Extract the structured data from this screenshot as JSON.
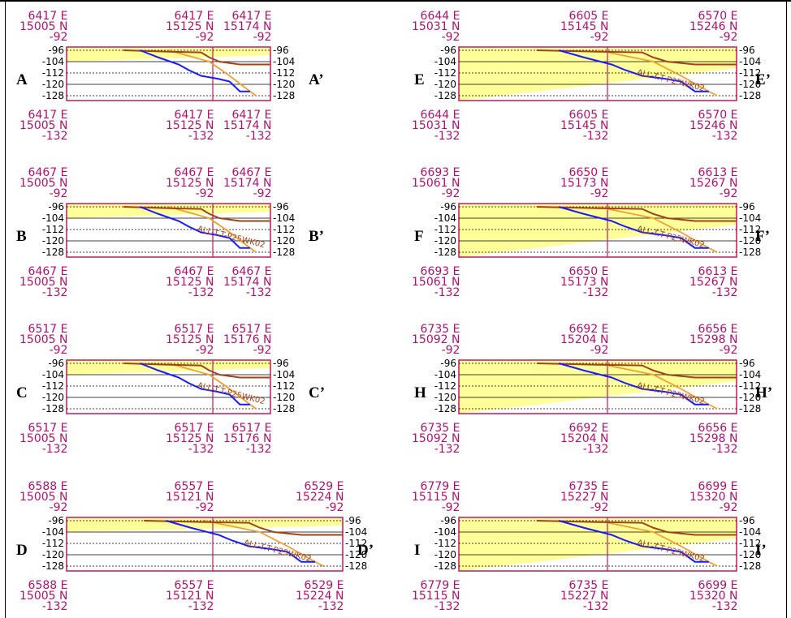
{
  "colors": {
    "coord_text": "#b0126e",
    "frame": "#c2185b",
    "fill": "#ffff99",
    "blue_line": "#1a1aff",
    "brown_line": "#a0441a",
    "orange_line": "#f0a030",
    "grid": "#000000"
  },
  "elevations": [
    "-96",
    "-104",
    "-112",
    "-120",
    "-128"
  ],
  "panels": [
    {
      "id": "A",
      "left_label": "A",
      "right_label": "A’",
      "top": [
        [
          "6417 E",
          "15005 N",
          "-92"
        ],
        [
          "6417 E",
          "15125 N",
          "-92"
        ],
        [
          "6417 E",
          "15174 N",
          "-92"
        ]
      ],
      "bottom": [
        [
          "6417 E",
          "15005 N",
          "-132"
        ],
        [
          "6417 E",
          "15125 N",
          "-132"
        ],
        [
          "6417 E",
          "15174 N",
          "-132"
        ]
      ],
      "annotation": ""
    },
    {
      "id": "B",
      "left_label": "B",
      "right_label": "B’",
      "top": [
        [
          "6467 E",
          "15005 N",
          "-92"
        ],
        [
          "6467 E",
          "15125 N",
          "-92"
        ],
        [
          "6467 E",
          "15174 N",
          "-92"
        ]
      ],
      "bottom": [
        [
          "6467 E",
          "15005 N",
          "-132"
        ],
        [
          "6467 E",
          "15125 N",
          "-132"
        ],
        [
          "6467 E",
          "15174 N",
          "-132"
        ]
      ],
      "annotation": "ALL-T.T-P25WK02"
    },
    {
      "id": "C",
      "left_label": "C",
      "right_label": "C’",
      "top": [
        [
          "6517 E",
          "15005 N",
          "-92"
        ],
        [
          "6517 E",
          "15125 N",
          "-92"
        ],
        [
          "6517 E",
          "15176 N",
          "-92"
        ]
      ],
      "bottom": [
        [
          "6517 E",
          "15005 N",
          "-132"
        ],
        [
          "6517 E",
          "15125 N",
          "-132"
        ],
        [
          "6517 E",
          "15176 N",
          "-132"
        ]
      ],
      "annotation": "ALL-T.T-P25WK02"
    },
    {
      "id": "D",
      "left_label": "D",
      "right_label": "D’",
      "top": [
        [
          "6588 E",
          "15005 N",
          "-92"
        ],
        [
          "6557 E",
          "15121 N",
          "-92"
        ],
        [
          "6529 E",
          "15224 N",
          "-92"
        ]
      ],
      "bottom": [
        [
          "6588 E",
          "15005 N",
          "-132"
        ],
        [
          "6557 E",
          "15121 N",
          "-132"
        ],
        [
          "6529 E",
          "15224 N",
          "-132"
        ]
      ],
      "annotation": "ALL-T.T-P25WK02"
    },
    {
      "id": "E",
      "left_label": "E",
      "right_label": "E’",
      "top": [
        [
          "6644 E",
          "15031 N",
          "-92"
        ],
        [
          "6605 E",
          "15145 N",
          "-92"
        ],
        [
          "6570 E",
          "15246 N",
          "-92"
        ]
      ],
      "bottom": [
        [
          "6644 E",
          "15031 N",
          "-132"
        ],
        [
          "6605 E",
          "15145 N",
          "-132"
        ],
        [
          "6570 E",
          "15246 N",
          "-132"
        ]
      ],
      "annotation": "ALL-T.T-P25WK02"
    },
    {
      "id": "F",
      "left_label": "F",
      "right_label": "F’",
      "top": [
        [
          "6693 E",
          "15061 N",
          "-92"
        ],
        [
          "6650 E",
          "15173 N",
          "-92"
        ],
        [
          "6613 E",
          "15267 N",
          "-92"
        ]
      ],
      "bottom": [
        [
          "6693 E",
          "15061 N",
          "-132"
        ],
        [
          "6650 E",
          "15173 N",
          "-132"
        ],
        [
          "6613 E",
          "15267 N",
          "-132"
        ]
      ],
      "annotation": "ALL-T.T-P25WK02"
    },
    {
      "id": "H",
      "left_label": "H",
      "right_label": "H’",
      "top": [
        [
          "6735 E",
          "15092 N",
          "-92"
        ],
        [
          "6692 E",
          "15204 N",
          "-92"
        ],
        [
          "6656 E",
          "15298 N",
          "-92"
        ]
      ],
      "bottom": [
        [
          "6735 E",
          "15092 N",
          "-132"
        ],
        [
          "6692 E",
          "15204 N",
          "-132"
        ],
        [
          "6656 E",
          "15298 N",
          "-132"
        ]
      ],
      "annotation": "ALL-T.T-P25WK02"
    },
    {
      "id": "I",
      "left_label": "I",
      "right_label": "I’",
      "top": [
        [
          "6779 E",
          "15115 N",
          "-92"
        ],
        [
          "6735 E",
          "15227 N",
          "-92"
        ],
        [
          "6699 E",
          "15320 N",
          "-92"
        ]
      ],
      "bottom": [
        [
          "6779 E",
          "15115 N",
          "-132"
        ],
        [
          "6735 E",
          "15227 N",
          "-132"
        ],
        [
          "6699 E",
          "15320 N",
          "-132"
        ]
      ],
      "annotation": "ALL-T.T-P25WK02"
    }
  ]
}
